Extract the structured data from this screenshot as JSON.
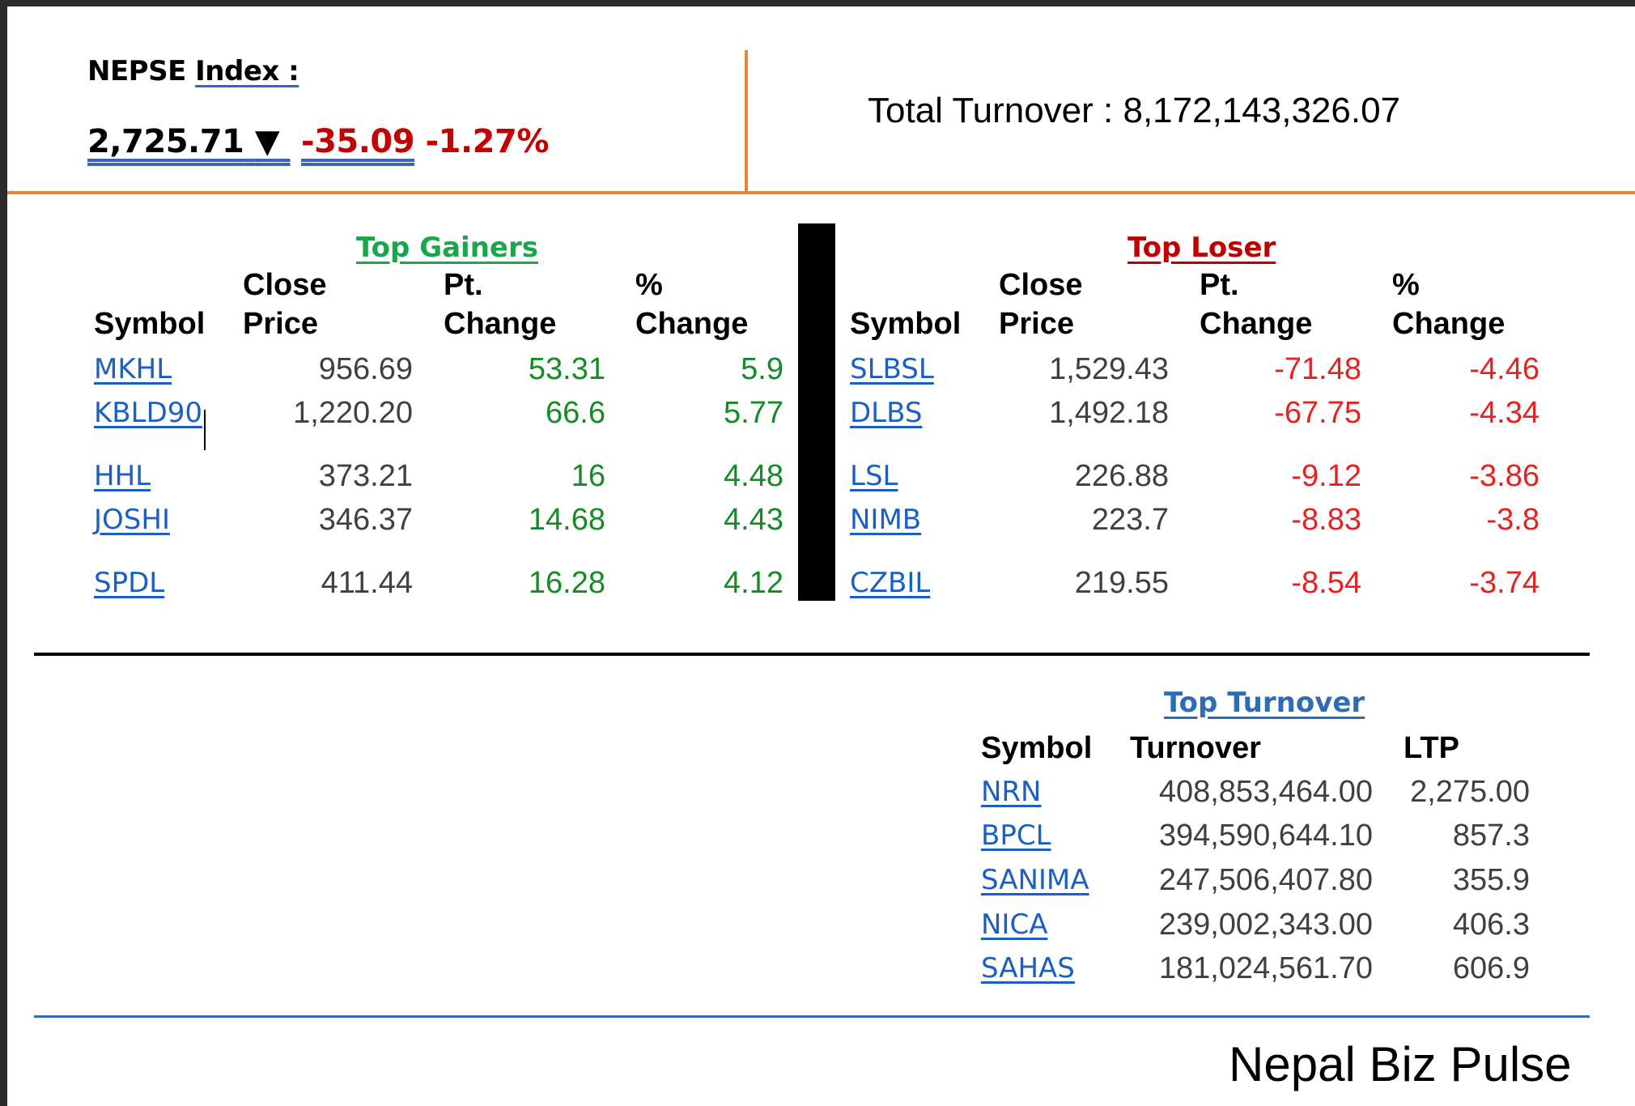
{
  "header": {
    "index_label_prefix": "NEPSE",
    "index_label_suffix": "Index :",
    "index_value": "2,725.71",
    "index_arrow": "▼",
    "point_change": "-35.09",
    "percent_change": "-1.27%",
    "turnover_text": "Total Turnover : 8,172,143,326.07"
  },
  "colors": {
    "accent_orange": "#e8833a",
    "gain_green": "#148c24",
    "loss_red": "#e82020",
    "link_blue": "#1b5fc4"
  },
  "gainers": {
    "title": "Top Gainers",
    "col_symbol": "Symbol",
    "col_close_1": "Close",
    "col_close_2": "Price",
    "col_pt_1": "Pt.",
    "col_pt_2": "Change",
    "col_pct_1": "%",
    "col_pct_2": "Change",
    "rows": [
      {
        "symbol": "MKHL",
        "close": "956.69",
        "pt": "53.31",
        "pct": "5.9"
      },
      {
        "symbol": "KBLD90",
        "close": "1,220.20",
        "pt": "66.6",
        "pct": "5.77"
      },
      {
        "symbol": "HHL",
        "close": "373.21",
        "pt": "16",
        "pct": "4.48"
      },
      {
        "symbol": "JOSHI",
        "close": "346.37",
        "pt": "14.68",
        "pct": "4.43"
      },
      {
        "symbol": "SPDL",
        "close": "411.44",
        "pt": "16.28",
        "pct": "4.12"
      }
    ]
  },
  "losers": {
    "title": "Top Loser",
    "col_symbol": "Symbol",
    "col_close_1": "Close",
    "col_close_2": "Price",
    "col_pt_1": "Pt.",
    "col_pt_2": "Change",
    "col_pct_1": "%",
    "col_pct_2": "Change",
    "rows": [
      {
        "symbol": "SLBSL",
        "close": "1,529.43",
        "pt": "-71.48",
        "pct": "-4.46"
      },
      {
        "symbol": "DLBS",
        "close": "1,492.18",
        "pt": "-67.75",
        "pct": "-4.34"
      },
      {
        "symbol": "LSL",
        "close": "226.88",
        "pt": "-9.12",
        "pct": "-3.86"
      },
      {
        "symbol": "NIMB",
        "close": "223.7",
        "pt": "-8.83",
        "pct": "-3.8"
      },
      {
        "symbol": "CZBIL",
        "close": "219.55",
        "pt": "-8.54",
        "pct": "-3.74"
      }
    ]
  },
  "turnover": {
    "title": "Top Turnover",
    "col_symbol": "Symbol",
    "col_turnover": "Turnover",
    "col_ltp": "LTP",
    "rows": [
      {
        "symbol": "NRN",
        "turnover": "408,853,464.00",
        "ltp": "2,275.00"
      },
      {
        "symbol": "BPCL",
        "turnover": "394,590,644.10",
        "ltp": "857.3"
      },
      {
        "symbol": "SANIMA",
        "turnover": "247,506,407.80",
        "ltp": "355.9"
      },
      {
        "symbol": "NICA",
        "turnover": "239,002,343.00",
        "ltp": "406.3"
      },
      {
        "symbol": "SAHAS",
        "turnover": "181,024,561.70",
        "ltp": "606.9"
      }
    ]
  },
  "footer": {
    "brand": "Nepal Biz Pulse"
  }
}
